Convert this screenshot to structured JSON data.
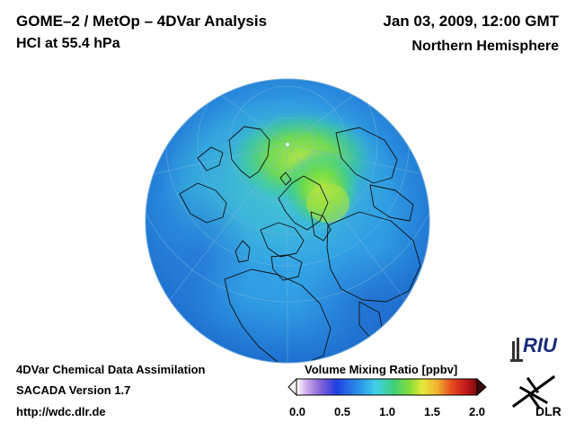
{
  "header": {
    "title": "GOME–2 / MetOp – 4DVar Analysis",
    "variable": "HCl at 55.4 hPa",
    "datetime": "Jan 03, 2009, 12:00 GMT",
    "hemisphere": "Northern Hemisphere"
  },
  "footer": {
    "line1": "4DVar Chemical Data Assimilation",
    "line2": "SACADA Version 1.7",
    "line3": "http://wdc.dlr.de"
  },
  "colorbar": {
    "label": "Volume Mixing Ratio [ppbv]",
    "ticks": [
      "0.0",
      "0.5",
      "1.0",
      "1.5",
      "2.0"
    ],
    "range": [
      0.0,
      2.0
    ]
  },
  "logos": {
    "riu": "RIU",
    "dlr": "DLR"
  },
  "colors": {
    "globe_base": "#2f9be3",
    "globe_edge": "#1e6fd0",
    "high_region": "#66d84a",
    "peak_region": "#b8e83a",
    "coastline": "#111111"
  }
}
